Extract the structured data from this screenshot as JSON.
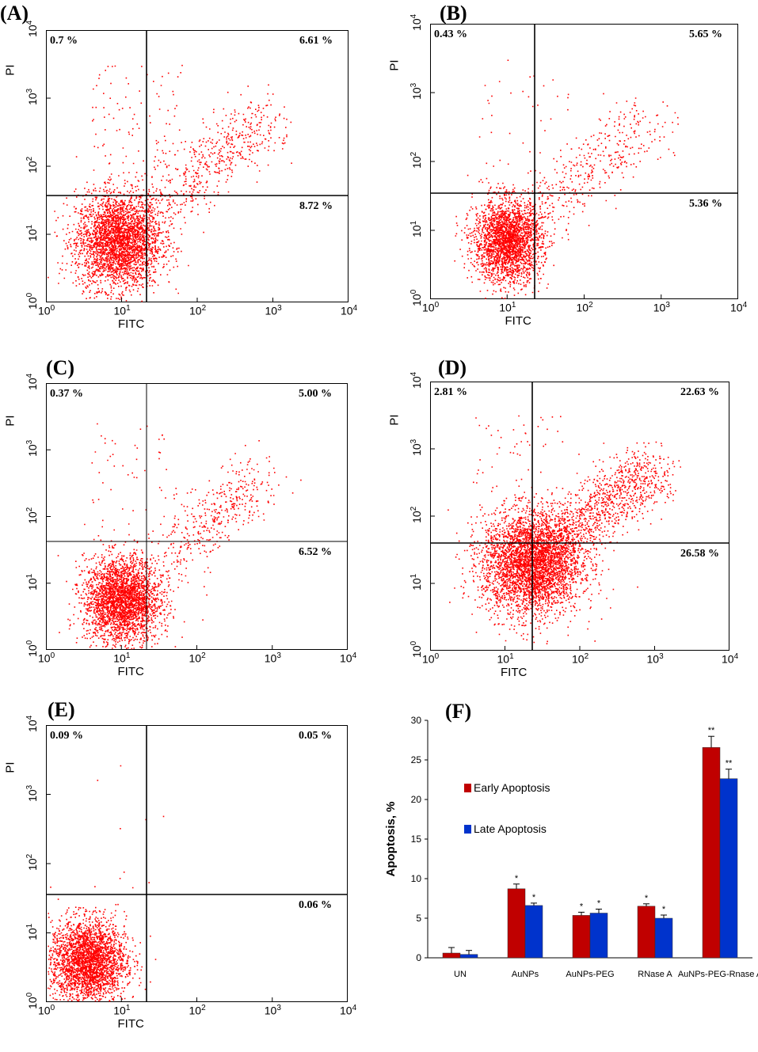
{
  "panels": [
    {
      "label": "(A)",
      "ylabel": "PI",
      "xlabel": "FITC",
      "q_ul": "0.7 %",
      "q_ur": "6.61 %",
      "q_lr": "8.72 %"
    },
    {
      "label": "(B)",
      "ylabel": "PI",
      "xlabel": "FITC",
      "q_ul": "0.43 %",
      "q_ur": "5.65 %",
      "q_lr": "5.36 %"
    },
    {
      "label": "(C)",
      "ylabel": "PI",
      "xlabel": "FITC",
      "q_ul": "0.37 %",
      "q_ur": "5.00 %",
      "q_lr": "6.52 %"
    },
    {
      "label": "(D)",
      "ylabel": "PI",
      "xlabel": "FITC",
      "q_ul": "2.81 %",
      "q_ur": "22.63 %",
      "q_lr": "26.58 %"
    },
    {
      "label": "(E)",
      "ylabel": "PI",
      "xlabel": "FITC",
      "q_ul": "0.09 %",
      "q_ur": "0.05 %",
      "q_lr": "0.06 %"
    }
  ],
  "ticks": {
    "base": "10",
    "exps": [
      "0",
      "1",
      "2",
      "3",
      "4"
    ]
  },
  "colors": {
    "dots": "#ff0000",
    "early": "#c00000",
    "late": "#0033cc"
  },
  "chart_data": [
    {
      "type": "scatter",
      "title": "(A)",
      "xlabel": "FITC",
      "ylabel": "PI",
      "xscale": "log",
      "yscale": "log",
      "xlim": [
        1,
        10000
      ],
      "ylim": [
        1,
        10000
      ],
      "quadrants": {
        "upper_left": 0.7,
        "upper_right": 6.61,
        "lower_right": 8.72
      }
    },
    {
      "type": "scatter",
      "title": "(B)",
      "xlabel": "FITC",
      "ylabel": "PI",
      "xscale": "log",
      "yscale": "log",
      "xlim": [
        1,
        10000
      ],
      "ylim": [
        1,
        10000
      ],
      "quadrants": {
        "upper_left": 0.43,
        "upper_right": 5.65,
        "lower_right": 5.36
      }
    },
    {
      "type": "scatter",
      "title": "(C)",
      "xlabel": "FITC",
      "ylabel": "PI",
      "xscale": "log",
      "yscale": "log",
      "xlim": [
        1,
        10000
      ],
      "ylim": [
        1,
        10000
      ],
      "quadrants": {
        "upper_left": 0.37,
        "upper_right": 5.0,
        "lower_right": 6.52
      }
    },
    {
      "type": "scatter",
      "title": "(D)",
      "xlabel": "FITC",
      "ylabel": "PI",
      "xscale": "log",
      "yscale": "log",
      "xlim": [
        1,
        10000
      ],
      "ylim": [
        1,
        10000
      ],
      "quadrants": {
        "upper_left": 2.81,
        "upper_right": 22.63,
        "lower_right": 26.58
      }
    },
    {
      "type": "scatter",
      "title": "(E)",
      "xlabel": "FITC",
      "ylabel": "PI",
      "xscale": "log",
      "yscale": "log",
      "xlim": [
        1,
        10000
      ],
      "ylim": [
        1,
        10000
      ],
      "quadrants": {
        "upper_left": 0.09,
        "upper_right": 0.05,
        "lower_right": 0.06
      }
    },
    {
      "type": "bar",
      "title": "(F)",
      "ylabel": "Apoptosis, %",
      "ylim": [
        0,
        30
      ],
      "yticks": [
        0,
        5,
        10,
        15,
        20,
        25,
        30
      ],
      "categories": [
        "UN",
        "AuNPs",
        "AuNPs-PEG",
        "RNase A",
        "AuNPs-PEG-Rnase A"
      ],
      "series": [
        {
          "name": "Early Apoptosis",
          "values": [
            0.6,
            8.72,
            5.36,
            6.52,
            26.58
          ],
          "errors": [
            0.7,
            0.6,
            0.4,
            0.3,
            1.4
          ],
          "marks": [
            "",
            "*",
            "*",
            "*",
            "**"
          ]
        },
        {
          "name": "Late Apoptosis",
          "values": [
            0.43,
            6.61,
            5.65,
            5.0,
            22.63
          ],
          "errors": [
            0.5,
            0.3,
            0.5,
            0.4,
            1.2
          ],
          "marks": [
            "",
            "*",
            "*",
            "*",
            "**"
          ]
        }
      ]
    }
  ]
}
